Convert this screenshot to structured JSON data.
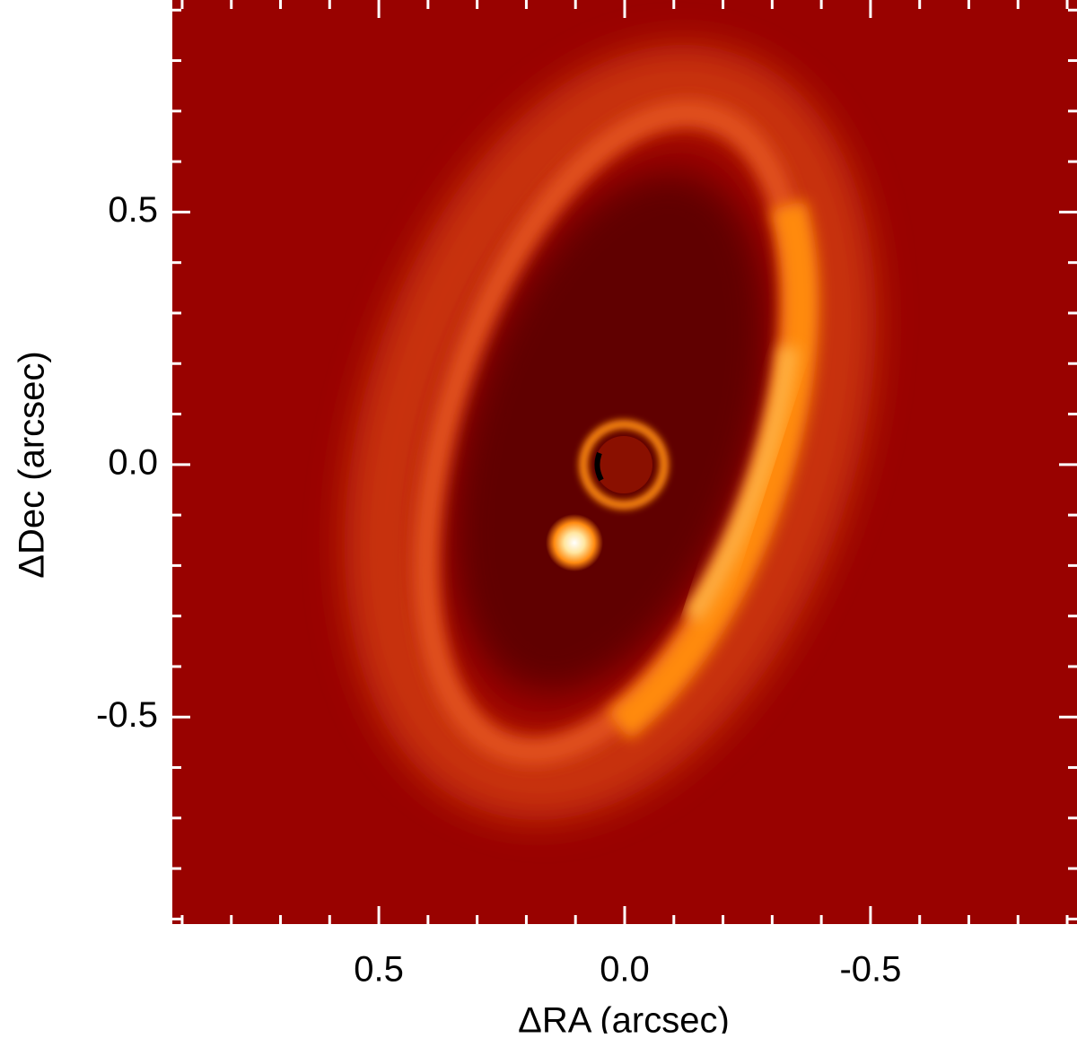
{
  "chart_data": {
    "type": "image",
    "xlabel": "ΔRA (arcsec)",
    "ylabel": "ΔDec  (arcsec)",
    "xlim": [
      0.92,
      -0.92
    ],
    "ylim": [
      -0.91,
      0.92
    ],
    "xticks": [
      0.5,
      {
        "value": 0,
        "label": "0.0"
      },
      -0.5
    ],
    "yticks": [
      0.5,
      {
        "value": 0,
        "label": "0.0"
      },
      -0.5
    ],
    "minor_ticks": [
      -0.9,
      -0.8,
      -0.7,
      -0.6,
      -0.4,
      -0.3,
      -0.2,
      -0.1,
      0.1,
      0.2,
      0.3,
      0.4,
      0.6,
      0.7,
      0.8,
      0.9
    ],
    "colormap": [
      "#5a0000",
      "#990200",
      "#ff8a10",
      "#ffffff"
    ]
  }
}
